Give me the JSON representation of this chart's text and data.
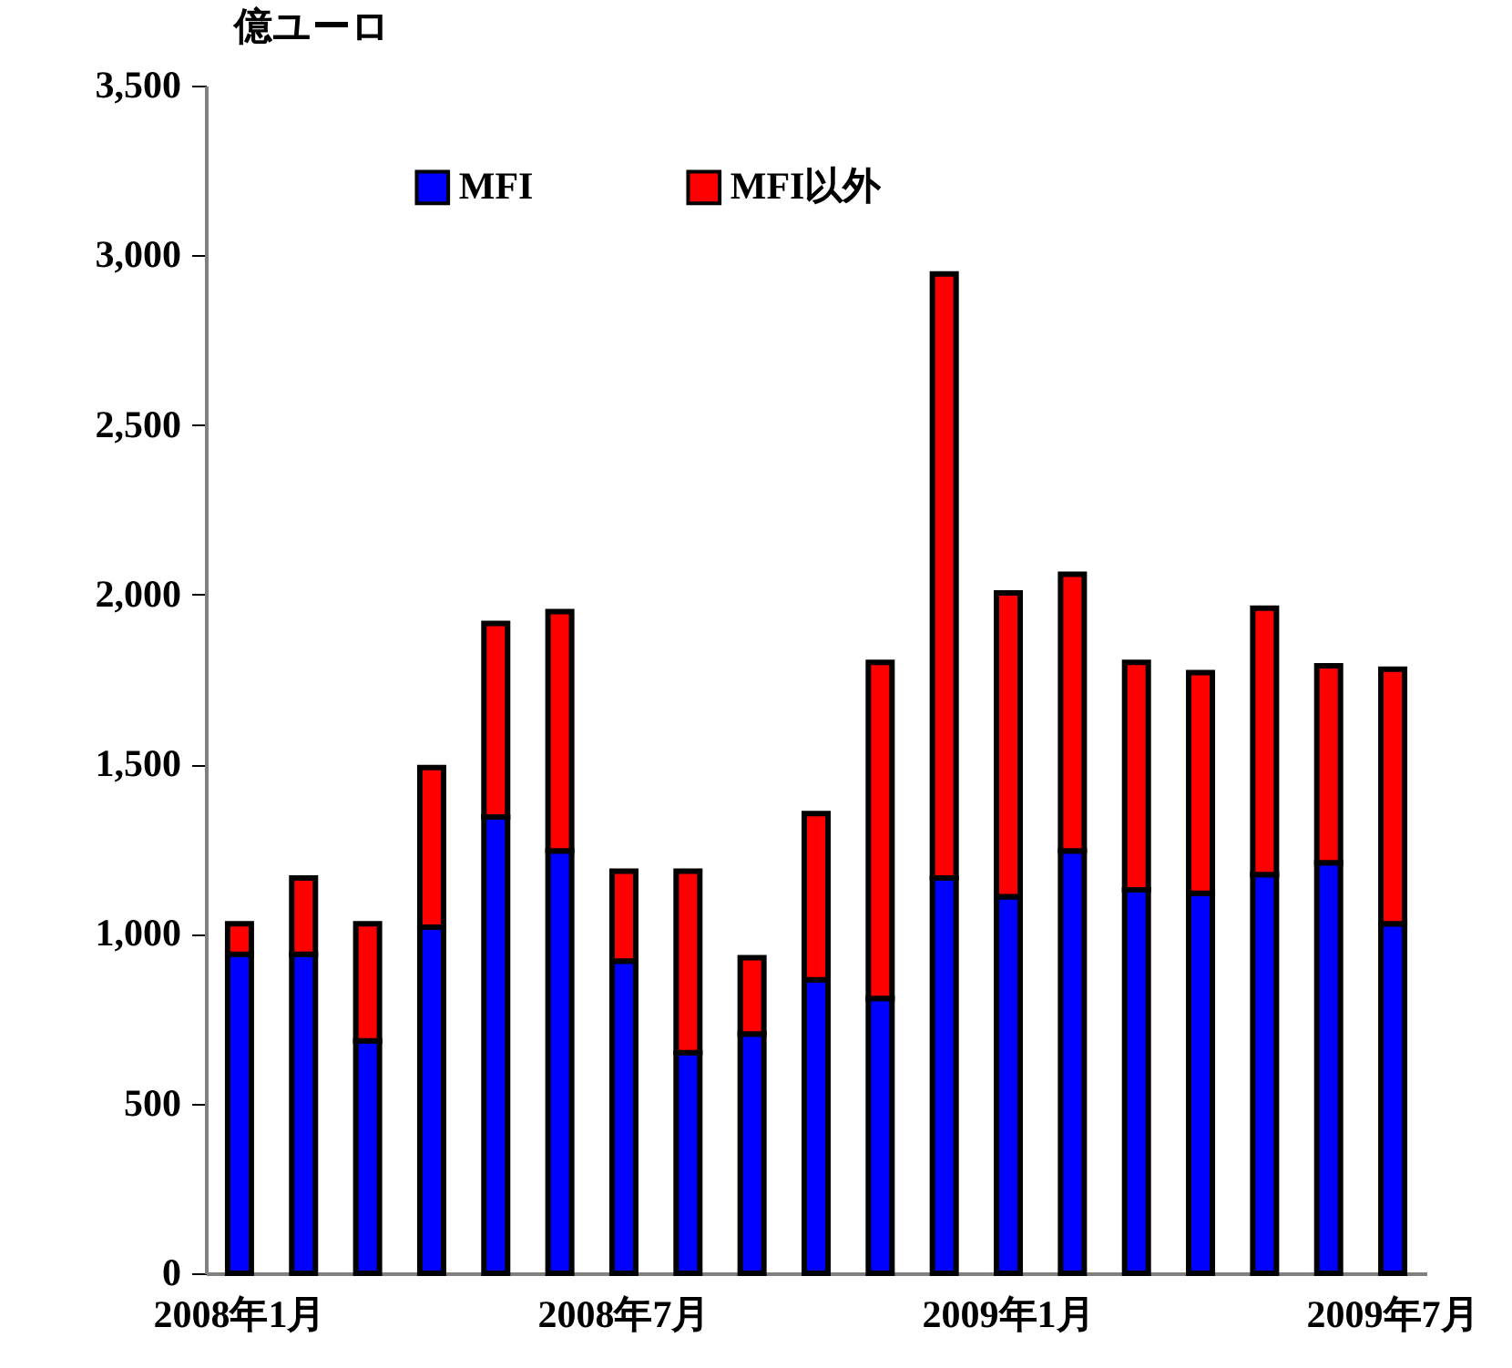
{
  "chart_data": {
    "type": "bar",
    "ylabel": "億ユーロ",
    "stacked": true,
    "categories": [
      "2008年1月",
      null,
      null,
      null,
      null,
      null,
      "2008年7月",
      null,
      null,
      null,
      null,
      null,
      "2009年1月",
      null,
      null,
      null,
      null,
      null,
      "2009年7月"
    ],
    "series": [
      {
        "name": "MFI",
        "color": "#0000ff",
        "values": [
          940,
          940,
          685,
          1020,
          1345,
          1245,
          920,
          650,
          705,
          865,
          810,
          1165,
          1110,
          1245,
          1130,
          1120,
          1175,
          1210,
          1030
        ]
      },
      {
        "name": "MFI以外",
        "color": "#ff0000",
        "values": [
          90,
          225,
          345,
          470,
          570,
          705,
          265,
          535,
          225,
          490,
          990,
          1780,
          895,
          815,
          670,
          650,
          785,
          580,
          750
        ]
      }
    ],
    "ylim": [
      0,
      3500
    ],
    "yticks": [
      {
        "value": 0,
        "label": "0"
      },
      {
        "value": 500,
        "label": "500"
      },
      {
        "value": 1000,
        "label": "1,000"
      },
      {
        "value": 1500,
        "label": "1,500"
      },
      {
        "value": 2000,
        "label": "2,000"
      },
      {
        "value": 2500,
        "label": "2,500"
      },
      {
        "value": 3000,
        "label": "3,000"
      },
      {
        "value": 3500,
        "label": "3,500"
      }
    ],
    "legend": "top",
    "grid": false
  }
}
